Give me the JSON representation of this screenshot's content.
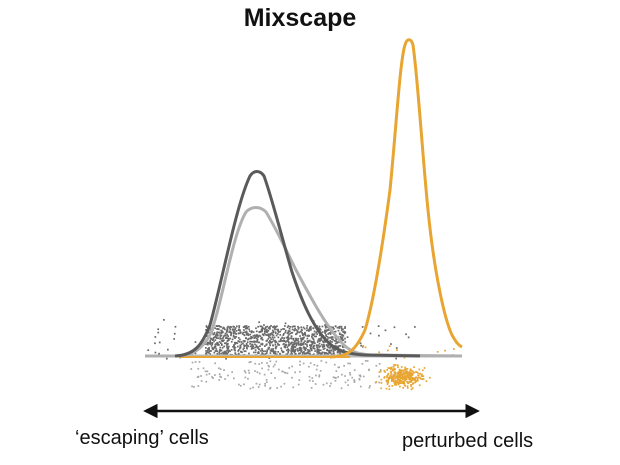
{
  "title": "Mixscape",
  "labels": {
    "left": "‘escaping’ cells",
    "right": "perturbed cells"
  },
  "axis": {
    "direction": "bidirectional"
  },
  "colors": {
    "dark_curve": "#5a5a5a",
    "light_curve": "#b0b0b0",
    "perturbed_curve": "#e8a531",
    "dark_points": "#6a6a6a",
    "light_points": "#a8a8a8",
    "perturbed_points": "#e8a531",
    "arrow": "#111111"
  },
  "curves": [
    {
      "id": "escaping-dark",
      "color_key": "dark_curve"
    },
    {
      "id": "escaping-light",
      "color_key": "light_curve"
    },
    {
      "id": "perturbed",
      "color_key": "perturbed_curve"
    }
  ],
  "point_clouds": [
    {
      "id": "dark-cloud",
      "color_key": "dark_points"
    },
    {
      "id": "light-cloud",
      "color_key": "light_points"
    },
    {
      "id": "perturbed-cloud",
      "color_key": "perturbed_points"
    }
  ]
}
